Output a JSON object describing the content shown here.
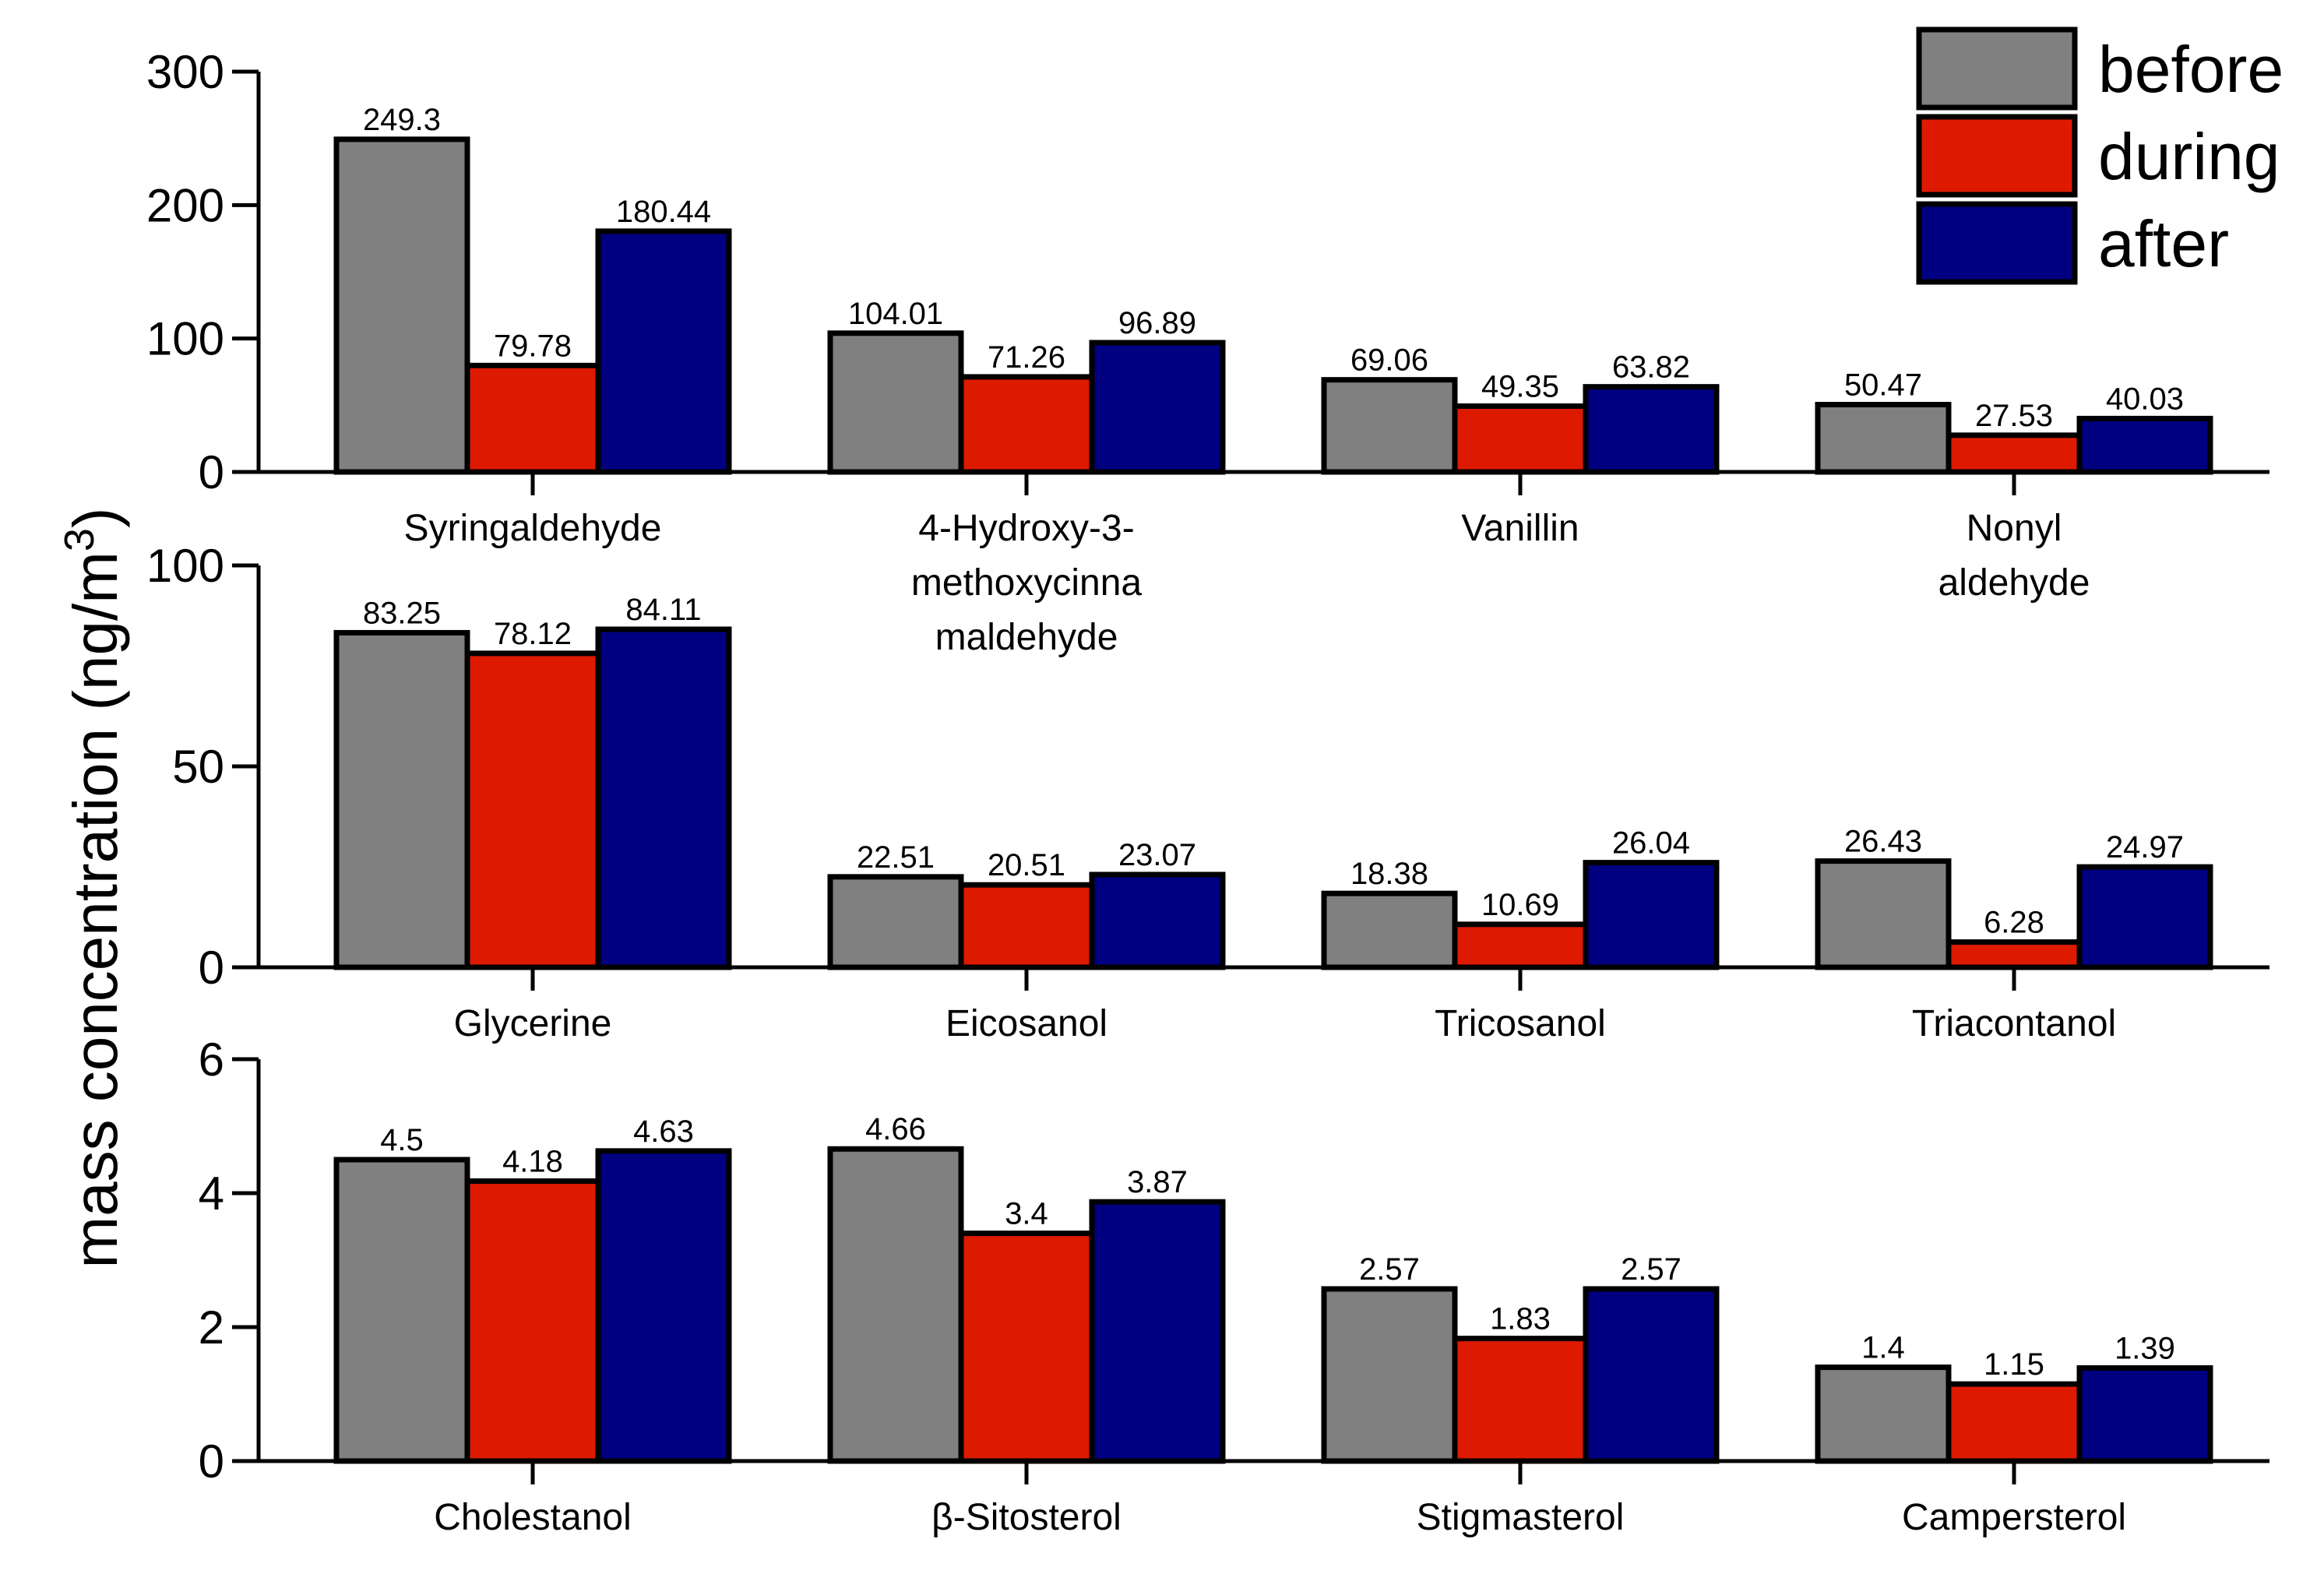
{
  "chart_data": {
    "type": "bar",
    "ylabel": "mass concentration (ng/m",
    "ylabel_superscript": "3",
    "ylabel_suffix": ")",
    "colors": {
      "before": "#808080",
      "during": "#dd1a00",
      "after": "#000080"
    },
    "legend": [
      "before",
      "during",
      "after"
    ],
    "panels": [
      {
        "ylim": [
          0,
          300
        ],
        "yticks": [
          "0",
          "100",
          "200",
          "300"
        ],
        "categories": [
          [
            "Syringaldehyde"
          ],
          [
            "4-Hydroxy-3-",
            "methoxycinna",
            "maldehyde"
          ],
          [
            "Vanillin"
          ],
          [
            "Nonyl",
            "aldehyde"
          ]
        ],
        "series": [
          {
            "name": "before",
            "values": [
              249.3,
              104.01,
              69.06,
              50.47
            ],
            "labels": [
              "249.3",
              "104.01",
              "69.06",
              "50.47"
            ]
          },
          {
            "name": "during",
            "values": [
              79.78,
              71.26,
              49.35,
              27.53
            ],
            "labels": [
              "79.78",
              "71.26",
              "49.35",
              "27.53"
            ]
          },
          {
            "name": "after",
            "values": [
              180.44,
              96.89,
              63.82,
              40.03
            ],
            "labels": [
              "180.44",
              "96.89",
              "63.82",
              "40.03"
            ]
          }
        ]
      },
      {
        "ylim": [
          0,
          100
        ],
        "yticks": [
          "0",
          "50",
          "100"
        ],
        "categories": [
          [
            "Glycerine"
          ],
          [
            "Eicosanol"
          ],
          [
            "Tricosanol"
          ],
          [
            "Triacontanol"
          ]
        ],
        "series": [
          {
            "name": "before",
            "values": [
              83.25,
              22.51,
              18.38,
              26.43
            ],
            "labels": [
              "83.25",
              "22.51",
              "18.38",
              "26.43"
            ]
          },
          {
            "name": "during",
            "values": [
              78.12,
              20.51,
              10.69,
              6.28
            ],
            "labels": [
              "78.12",
              "20.51",
              "10.69",
              "6.28"
            ]
          },
          {
            "name": "after",
            "values": [
              84.11,
              23.07,
              26.04,
              24.97
            ],
            "labels": [
              "84.11",
              "23.07",
              "26.04",
              "24.97"
            ]
          }
        ]
      },
      {
        "ylim": [
          0,
          6
        ],
        "yticks": [
          "0",
          "2",
          "4",
          "6"
        ],
        "categories": [
          [
            "Cholestanol"
          ],
          [
            "β-Sitosterol"
          ],
          [
            "Stigmasterol"
          ],
          [
            "Campersterol"
          ]
        ],
        "series": [
          {
            "name": "before",
            "values": [
              4.5,
              4.66,
              2.57,
              1.4
            ],
            "labels": [
              "4.5",
              "4.66",
              "2.57",
              "1.4"
            ]
          },
          {
            "name": "during",
            "values": [
              4.18,
              3.4,
              1.83,
              1.15
            ],
            "labels": [
              "4.18",
              "3.4",
              "1.83",
              "1.15"
            ]
          },
          {
            "name": "after",
            "values": [
              4.63,
              3.87,
              2.57,
              1.39
            ],
            "labels": [
              "4.63",
              "3.87",
              "2.57",
              "1.39"
            ]
          }
        ]
      }
    ]
  }
}
